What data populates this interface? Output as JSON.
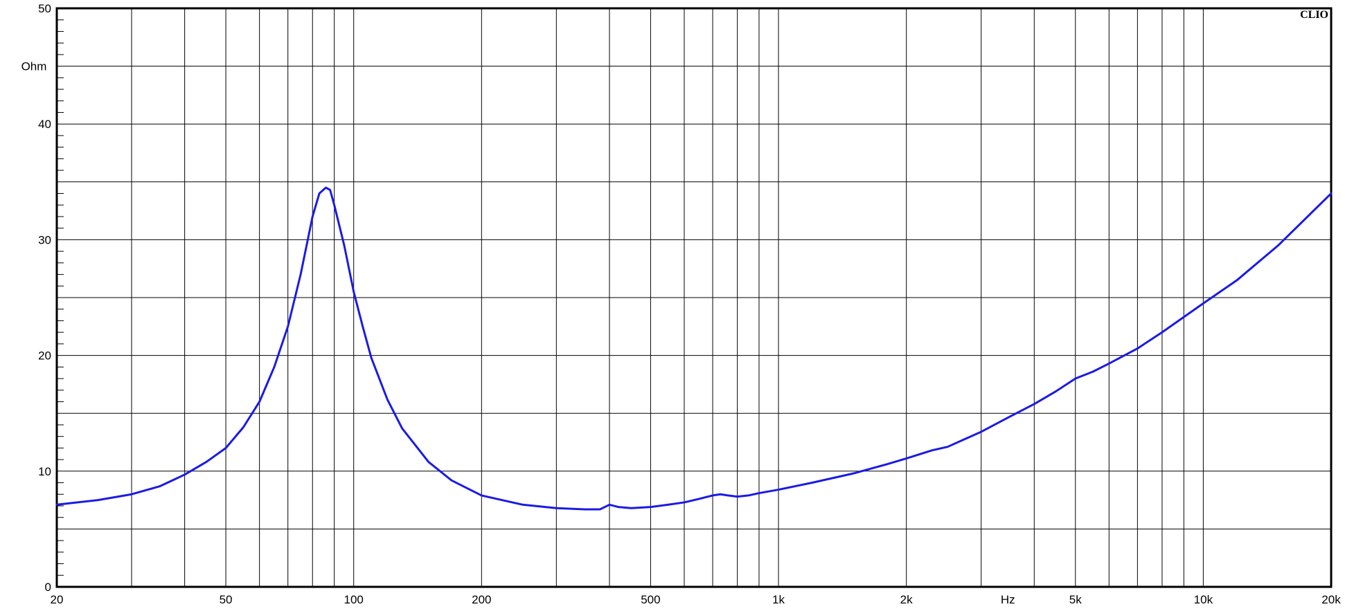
{
  "chart_data": {
    "type": "line",
    "title": "",
    "brand": "CLIO",
    "xlabel": "Hz",
    "ylabel": "Ohm",
    "xscale": "log",
    "xlim": [
      20,
      20000
    ],
    "ylim": [
      0,
      50
    ],
    "grid": true,
    "x_ticks": [
      {
        "value": 20,
        "label": "20"
      },
      {
        "value": 50,
        "label": "50"
      },
      {
        "value": 100,
        "label": "100"
      },
      {
        "value": 200,
        "label": "200"
      },
      {
        "value": 500,
        "label": "500"
      },
      {
        "value": 1000,
        "label": "1k"
      },
      {
        "value": 2000,
        "label": "2k"
      },
      {
        "value": 5000,
        "label": "5k"
      },
      {
        "value": 10000,
        "label": "10k"
      },
      {
        "value": 20000,
        "label": "20k"
      }
    ],
    "y_ticks": [
      {
        "value": 0,
        "label": "0"
      },
      {
        "value": 10,
        "label": "10"
      },
      {
        "value": 20,
        "label": "20"
      },
      {
        "value": 30,
        "label": "30"
      },
      {
        "value": 40,
        "label": "40"
      },
      {
        "value": 50,
        "label": "50"
      }
    ],
    "series": [
      {
        "color": "#1a1ae6",
        "x": [
          20,
          25,
          30,
          35,
          40,
          45,
          50,
          55,
          60,
          65,
          70,
          75,
          80,
          83,
          86,
          88,
          90,
          95,
          100,
          105,
          110,
          120,
          130,
          150,
          170,
          200,
          250,
          300,
          350,
          380,
          400,
          420,
          450,
          500,
          550,
          600,
          650,
          700,
          730,
          760,
          800,
          850,
          900,
          1000,
          1200,
          1500,
          1800,
          2000,
          2300,
          2500,
          3000,
          3500,
          4000,
          4500,
          5000,
          5500,
          6000,
          7000,
          8000,
          10000,
          12000,
          15000,
          20000
        ],
        "y": [
          7.1,
          7.5,
          8.0,
          8.7,
          9.7,
          10.8,
          12.0,
          13.8,
          16.0,
          19.0,
          22.5,
          27.0,
          32.0,
          34.0,
          34.5,
          34.3,
          33.0,
          29.5,
          25.5,
          22.5,
          19.8,
          16.2,
          13.7,
          10.8,
          9.2,
          7.9,
          7.1,
          6.8,
          6.7,
          6.7,
          7.1,
          6.9,
          6.8,
          6.9,
          7.1,
          7.3,
          7.6,
          7.9,
          8.0,
          7.9,
          7.8,
          7.9,
          8.1,
          8.4,
          9.0,
          9.8,
          10.6,
          11.1,
          11.8,
          12.1,
          13.4,
          14.7,
          15.8,
          16.9,
          18.0,
          18.6,
          19.3,
          20.6,
          22.0,
          24.5,
          26.5,
          29.5,
          34.0
        ]
      }
    ]
  }
}
